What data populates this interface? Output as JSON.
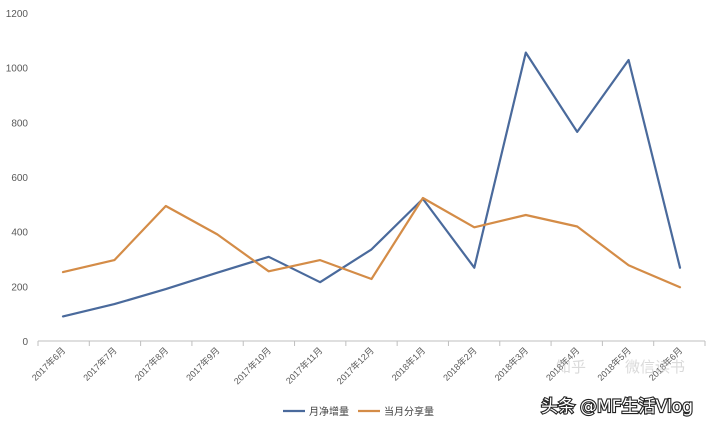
{
  "chart_data": {
    "type": "line",
    "categories": [
      "2017年6月",
      "2017年7月",
      "2017年8月",
      "2017年9月",
      "2017年10月",
      "2017年11月",
      "2017年12月",
      "2018年1月",
      "2018年2月",
      "2018年3月",
      "2018年4月",
      "2018年5月",
      "2018年6月"
    ],
    "series": [
      {
        "name": "月净增量",
        "color": "#4a6a9c",
        "values": [
          90,
          135,
          190,
          250,
          308,
          215,
          335,
          520,
          268,
          1055,
          765,
          1028,
          268
        ]
      },
      {
        "name": "当月分享量",
        "color": "#d48c47",
        "values": [
          252,
          296,
          494,
          390,
          255,
          296,
          227,
          523,
          416,
          461,
          419,
          277,
          197
        ]
      }
    ],
    "ylim": [
      0,
      1200
    ],
    "yticks": [
      "0",
      "200",
      "400",
      "600",
      "800",
      "1000",
      "1200"
    ],
    "xlabel": "",
    "ylabel": "",
    "title": "",
    "grid": false,
    "legend_position": "bottom"
  },
  "watermark": {
    "left_text": "头条",
    "handle": "@MF生活Vlog",
    "faint_text": "知乎",
    "faint_text2": "微信读书"
  }
}
